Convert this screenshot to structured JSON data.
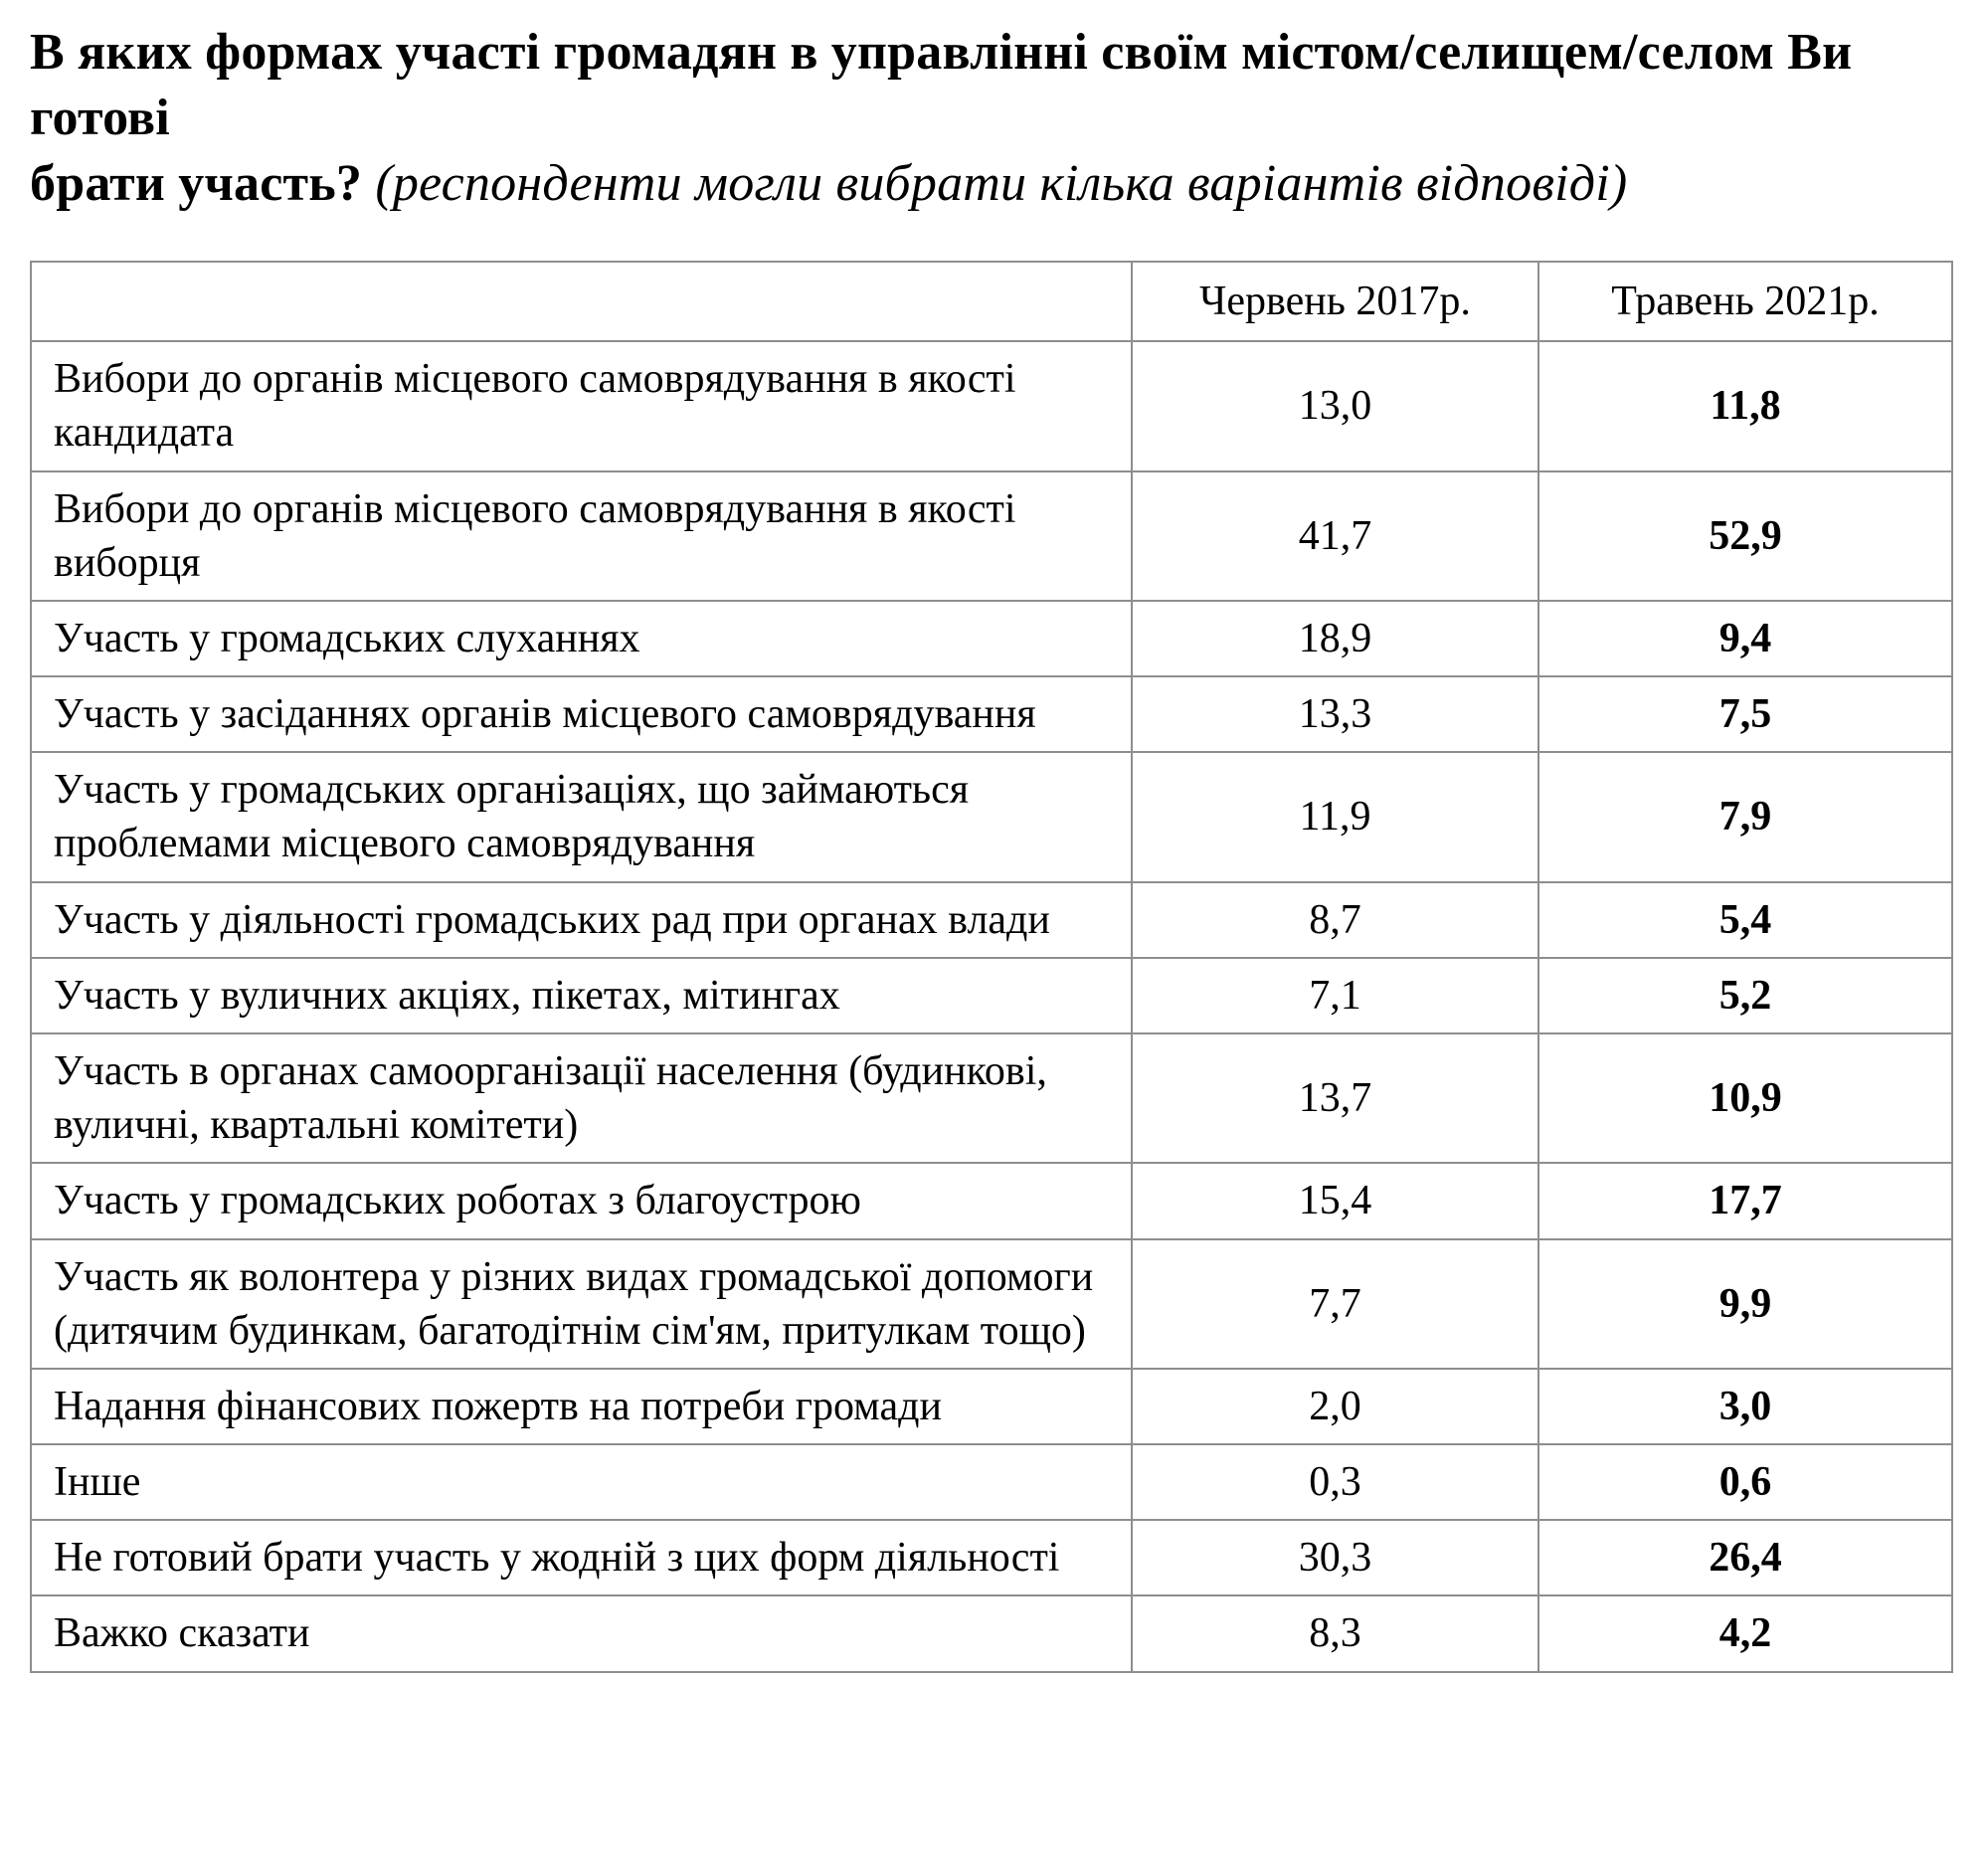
{
  "title": {
    "line1_bold": "В яких формах участі громадян в управлінні своїм містом/селищем/селом Ви готові",
    "line2_bold": "брати участь?",
    "line2_italic": "(респонденти могли вибрати кілька варіантів відповіді)"
  },
  "table": {
    "columns": [
      "",
      "Червень 2017р.",
      "Травень 2021р."
    ],
    "rows": [
      {
        "label": "Вибори до органів місцевого самоврядування в якості кандидата",
        "v2017": "13,0",
        "v2021": "11,8"
      },
      {
        "label": "Вибори до органів місцевого самоврядування в якості виборця",
        "v2017": "41,7",
        "v2021": "52,9"
      },
      {
        "label": "Участь у громадських слуханнях",
        "v2017": "18,9",
        "v2021": "9,4"
      },
      {
        "label": "Участь у засіданнях органів місцевого самоврядування",
        "v2017": "13,3",
        "v2021": "7,5"
      },
      {
        "label": "Участь у громадських організаціях, що займаються проблемами місцевого самоврядування",
        "v2017": "11,9",
        "v2021": "7,9"
      },
      {
        "label": "Участь у діяльності громадських рад при органах влади",
        "v2017": "8,7",
        "v2021": "5,4"
      },
      {
        "label": "Участь у вуличних акціях, пікетах, мітингах",
        "v2017": "7,1",
        "v2021": "5,2"
      },
      {
        "label": "Участь в органах самоорганізації населення (будинкові, вуличні, квартальні комітети)",
        "v2017": "13,7",
        "v2021": "10,9"
      },
      {
        "label": "Участь у громадських роботах з благоустрою",
        "v2017": "15,4",
        "v2021": "17,7"
      },
      {
        "label": "Участь як волонтера у різних видах громадської допомоги (дитячим будинкам, багатодітнім сім'ям, притулкам тощо)",
        "v2017": "7,7",
        "v2021": "9,9"
      },
      {
        "label": "Надання фінансових пожертв на потреби громади",
        "v2017": "2,0",
        "v2021": "3,0"
      },
      {
        "label": "Інше",
        "v2017": "0,3",
        "v2021": "0,6"
      },
      {
        "label": "Не готовий брати участь у жодній з цих форм діяльності",
        "v2017": "30,3",
        "v2021": "26,4"
      },
      {
        "label": "Важко сказати",
        "v2017": "8,3",
        "v2021": "4,2"
      }
    ]
  },
  "colors": {
    "background": "#ffffff",
    "text": "#000000",
    "table_border": "#8e8e8e"
  }
}
